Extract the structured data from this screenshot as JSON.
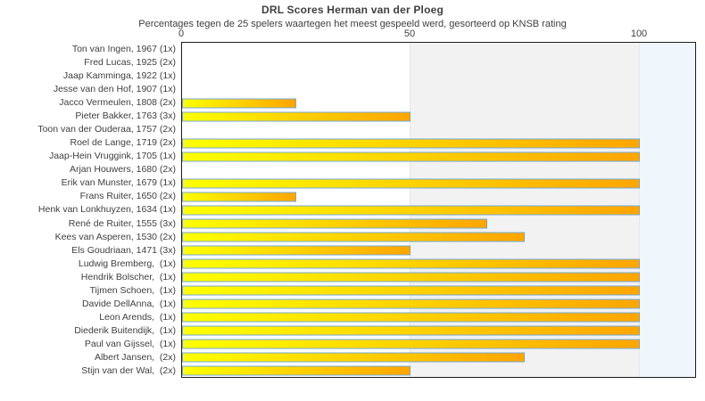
{
  "header": {
    "title": "DRL Scores Herman van der Ploeg",
    "subtitle": "Percentages tegen de 25 spelers waartegen het meest gespeeld werd, gesorteerd op KNSB rating"
  },
  "chart_data": {
    "type": "bar",
    "orientation": "horizontal",
    "title": "DRL Scores Herman van der Ploeg",
    "subtitle": "Percentages tegen de 25 spelers waartegen het meest gespeeld werd, gesorteerd op KNSB rating",
    "xlabel": "",
    "ylabel": "",
    "x_ticks": [
      0,
      50,
      100
    ],
    "xlim": [
      0,
      112
    ],
    "grid": "vertical background bands at 50 and 100",
    "legend_position": "none",
    "categories": [
      "Ton van Ingen, 1967 (1x)",
      "Fred Lucas, 1925 (2x)",
      "Jaap Kamminga, 1922 (1x)",
      "Jesse van den Hof, 1907 (1x)",
      "Jacco Vermeulen, 1808 (2x)",
      "Pieter Bakker, 1763 (3x)",
      "Toon van der Ouderaa, 1757 (2x)",
      "Roel de Lange, 1719 (2x)",
      "Jaap-Hein Vruggink, 1705 (1x)",
      "Arjan Houwers, 1680 (2x)",
      "Erik van Munster, 1679 (1x)",
      "Frans Ruiter, 1650 (2x)",
      "Henk van Lonkhuyzen, 1634 (1x)",
      "René de Ruiter, 1555 (3x)",
      "Kees van Asperen, 1530 (2x)",
      "Els Goudriaan, 1471 (3x)",
      "Ludwig Bremberg,  (1x)",
      "Hendrik Bolscher,  (1x)",
      "Tijmen Schoen,  (1x)",
      "Davide DellAnna,  (1x)",
      "Leon Arends,  (1x)",
      "Diederik Buitendijk,  (1x)",
      "Paul van Gijssel,  (1x)",
      "Albert Jansen,  (2x)",
      "Stijn van der Wal,  (2x)"
    ],
    "values": [
      0,
      0,
      0,
      0,
      25,
      50,
      0,
      100,
      100,
      0,
      100,
      25,
      100,
      66.7,
      75,
      50,
      100,
      100,
      100,
      100,
      100,
      100,
      100,
      75,
      50
    ],
    "colors": {
      "bar_gradient_start": "#ffff00",
      "bar_gradient_end": "#ffa500",
      "bar_border": "#74a9d4",
      "band_0_50": "#ffffff",
      "band_50_100": "#f2f2f2",
      "band_over_100": "#eff6fc",
      "text": "#404040",
      "plot_border": "#1c1c1c"
    }
  }
}
